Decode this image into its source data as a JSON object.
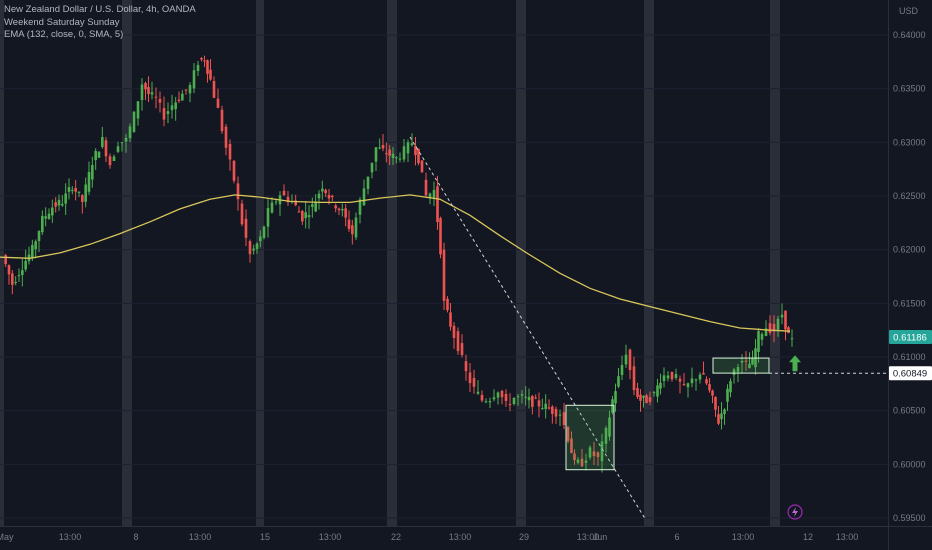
{
  "chart_data": {
    "type": "candlestick",
    "legend": {
      "symbol_line": "New Zealand Dollar / U.S. Dollar, 4h, OANDA",
      "indicator_1": "Weekend Saturday Sunday",
      "indicator_2": "EMA (132, close, 0, SMA, 5)"
    },
    "currency": "USD",
    "ylim": [
      0.5947,
      0.6425
    ],
    "y_ticks": [
      "0.64000",
      "0.63500",
      "0.63000",
      "0.62500",
      "0.62000",
      "0.61500",
      "0.61000",
      "0.60500",
      "0.60000",
      "0.59500"
    ],
    "y_tick_values": [
      0.64,
      0.635,
      0.63,
      0.625,
      0.62,
      0.615,
      0.61,
      0.605,
      0.6,
      0.595
    ],
    "x_ticks": [
      "May",
      "13:00",
      "8",
      "13:00",
      "15",
      "13:00",
      "22",
      "13:00",
      "29",
      "13:00",
      "Jun",
      "6",
      "13:00",
      "12",
      "13:00"
    ],
    "current_price_label": "0.61186",
    "current_price": 0.61186,
    "level_label": "0.60849",
    "level_price": 0.60849,
    "colors": {
      "up": "#26a69a",
      "up_bright": "#4caf50",
      "down": "#ef5350",
      "ema": "#d8c65a",
      "weekend": "#2a2e39",
      "background": "#131722",
      "arrow": "#4caf50",
      "price_tag": "#26a69a"
    },
    "ema_points": [
      [
        0,
        0.6193
      ],
      [
        30,
        0.6192
      ],
      [
        60,
        0.6197
      ],
      [
        90,
        0.6205
      ],
      [
        120,
        0.6215
      ],
      [
        150,
        0.6226
      ],
      [
        180,
        0.6238
      ],
      [
        210,
        0.6247
      ],
      [
        235,
        0.6251
      ],
      [
        260,
        0.6249
      ],
      [
        290,
        0.6245
      ],
      [
        320,
        0.6244
      ],
      [
        350,
        0.6244
      ],
      [
        380,
        0.6248
      ],
      [
        410,
        0.6251
      ],
      [
        440,
        0.6247
      ],
      [
        470,
        0.6232
      ],
      [
        500,
        0.6213
      ],
      [
        530,
        0.6195
      ],
      [
        560,
        0.6178
      ],
      [
        590,
        0.6164
      ],
      [
        620,
        0.6154
      ],
      [
        650,
        0.6147
      ],
      [
        680,
        0.614
      ],
      [
        710,
        0.6133
      ],
      [
        740,
        0.6127
      ],
      [
        770,
        0.6125
      ],
      [
        790,
        0.6124
      ]
    ],
    "trend_line": [
      [
        410,
        0.6305
      ],
      [
        646,
        0.5948
      ]
    ],
    "boxes": [
      {
        "name": "demand-zone-box",
        "x1": 566,
        "x2": 614,
        "y_top": 0.6055,
        "y_bottom": 0.5995
      },
      {
        "name": "breakout-zone-box",
        "x1": 713,
        "x2": 769,
        "y_top": 0.6099,
        "y_bottom": 0.6085
      }
    ],
    "weekend_bands": [
      [
        -4,
        4
      ],
      [
        122,
        132
      ],
      [
        256,
        264
      ],
      [
        387,
        397
      ],
      [
        516,
        526
      ],
      [
        644,
        654
      ],
      [
        770,
        780
      ]
    ],
    "x_tick_positions": [
      5,
      70,
      136,
      200,
      265,
      330,
      396,
      460,
      524,
      588,
      600,
      677,
      743,
      808,
      847
    ],
    "candle_path": [
      [
        4,
        0.6195
      ],
      [
        14,
        0.6168
      ],
      [
        24,
        0.6185
      ],
      [
        34,
        0.62
      ],
      [
        44,
        0.6228
      ],
      [
        54,
        0.624
      ],
      [
        64,
        0.6245
      ],
      [
        74,
        0.626
      ],
      [
        84,
        0.6245
      ],
      [
        94,
        0.6282
      ],
      [
        104,
        0.6302
      ],
      [
        112,
        0.628
      ],
      [
        120,
        0.63
      ],
      [
        128,
        0.6302
      ],
      [
        136,
        0.6325
      ],
      [
        144,
        0.6355
      ],
      [
        150,
        0.6345
      ],
      [
        158,
        0.634
      ],
      [
        166,
        0.6325
      ],
      [
        174,
        0.6335
      ],
      [
        184,
        0.6345
      ],
      [
        192,
        0.6352
      ],
      [
        200,
        0.6375
      ],
      [
        206,
        0.6378
      ],
      [
        212,
        0.6358
      ],
      [
        220,
        0.633
      ],
      [
        228,
        0.6295
      ],
      [
        236,
        0.6265
      ],
      [
        244,
        0.6225
      ],
      [
        252,
        0.6195
      ],
      [
        262,
        0.621
      ],
      [
        270,
        0.6235
      ],
      [
        282,
        0.6252
      ],
      [
        294,
        0.6245
      ],
      [
        304,
        0.623
      ],
      [
        314,
        0.624
      ],
      [
        324,
        0.626
      ],
      [
        334,
        0.6245
      ],
      [
        344,
        0.6235
      ],
      [
        354,
        0.6215
      ],
      [
        362,
        0.6245
      ],
      [
        370,
        0.627
      ],
      [
        378,
        0.6295
      ],
      [
        388,
        0.629
      ],
      [
        398,
        0.6285
      ],
      [
        406,
        0.6292
      ],
      [
        414,
        0.63
      ],
      [
        420,
        0.6285
      ],
      [
        428,
        0.625
      ],
      [
        436,
        0.6255
      ],
      [
        442,
        0.62
      ],
      [
        446,
        0.615
      ],
      [
        452,
        0.613
      ],
      [
        460,
        0.611
      ],
      [
        468,
        0.6085
      ],
      [
        476,
        0.607
      ],
      [
        484,
        0.606
      ],
      [
        492,
        0.6062
      ],
      [
        500,
        0.607
      ],
      [
        508,
        0.6055
      ],
      [
        516,
        0.6062
      ],
      [
        524,
        0.6062
      ],
      [
        534,
        0.6058
      ],
      [
        544,
        0.6055
      ],
      [
        554,
        0.605
      ],
      [
        562,
        0.6048
      ],
      [
        570,
        0.6025
      ],
      [
        576,
        0.6
      ],
      [
        584,
        0.6002
      ],
      [
        592,
        0.6012
      ],
      [
        600,
        0.6005
      ],
      [
        608,
        0.603
      ],
      [
        614,
        0.606
      ],
      [
        620,
        0.608
      ],
      [
        628,
        0.6105
      ],
      [
        636,
        0.607
      ],
      [
        642,
        0.606
      ],
      [
        648,
        0.606
      ],
      [
        656,
        0.6065
      ],
      [
        662,
        0.608
      ],
      [
        670,
        0.6085
      ],
      [
        678,
        0.608
      ],
      [
        686,
        0.607
      ],
      [
        694,
        0.6078
      ],
      [
        702,
        0.6085
      ],
      [
        708,
        0.6075
      ],
      [
        714,
        0.606
      ],
      [
        720,
        0.604
      ],
      [
        726,
        0.6055
      ],
      [
        732,
        0.608
      ],
      [
        740,
        0.6095
      ],
      [
        748,
        0.6092
      ],
      [
        754,
        0.6095
      ],
      [
        760,
        0.612
      ],
      [
        768,
        0.6128
      ],
      [
        776,
        0.6125
      ],
      [
        784,
        0.614
      ],
      [
        790,
        0.612
      ],
      [
        794,
        0.6115
      ]
    ]
  }
}
